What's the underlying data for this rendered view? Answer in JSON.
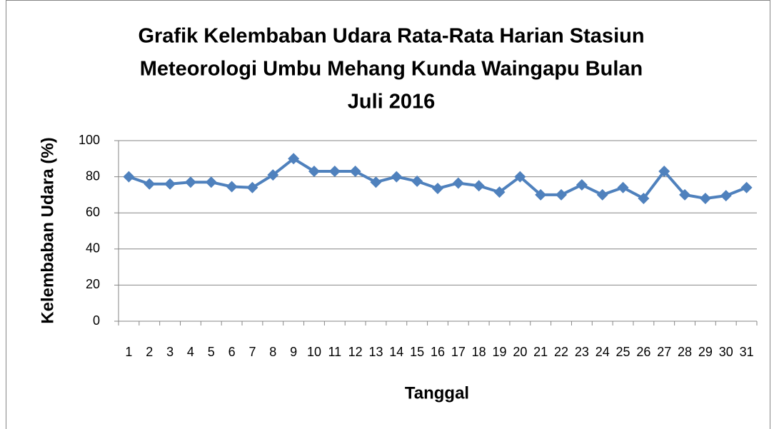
{
  "chart_data": {
    "type": "line",
    "title": [
      "Grafik Kelembaban Udara Rata-Rata Harian Stasiun",
      "Meteorologi Umbu Mehang Kunda Waingapu Bulan",
      "Juli 2016"
    ],
    "x_label": "Tanggal",
    "y_label": "Kelembaban Udara (%)",
    "categories": [
      "1",
      "2",
      "3",
      "4",
      "5",
      "6",
      "7",
      "8",
      "9",
      "10",
      "11",
      "12",
      "13",
      "14",
      "15",
      "16",
      "17",
      "18",
      "19",
      "20",
      "21",
      "22",
      "23",
      "24",
      "25",
      "26",
      "27",
      "28",
      "29",
      "30",
      "31"
    ],
    "values": [
      80,
      76,
      76,
      77,
      77,
      74.5,
      74,
      81,
      90,
      83,
      83,
      83,
      77,
      80,
      77.5,
      73.5,
      76.5,
      75,
      71.5,
      80,
      70,
      70,
      75.5,
      70,
      74,
      68,
      83,
      70,
      68,
      69.5,
      74
    ],
    "color": "#4f81bd",
    "ylim": [
      0,
      100
    ],
    "yticks": [
      0,
      20,
      40,
      60,
      80,
      100
    ],
    "grid": true
  }
}
